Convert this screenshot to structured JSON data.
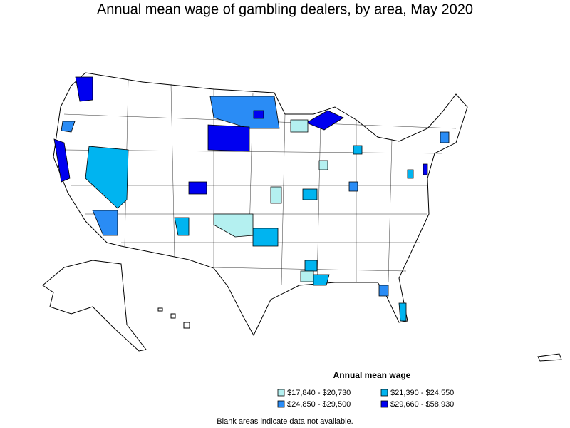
{
  "title": "Annual mean wage of gambling dealers, by area, May 2020",
  "legend": {
    "title": "Annual mean wage",
    "items": [
      {
        "label": "$17,840 - $20,730",
        "color": "#b4f0f0"
      },
      {
        "label": "$21,390 - $24,550",
        "color": "#00b4f0"
      },
      {
        "label": "$24,850 - $29,500",
        "color": "#2a8cf5"
      },
      {
        "label": "$29,660 - $58,930",
        "color": "#0000f0"
      }
    ]
  },
  "note": "Blank areas indicate data not available."
}
